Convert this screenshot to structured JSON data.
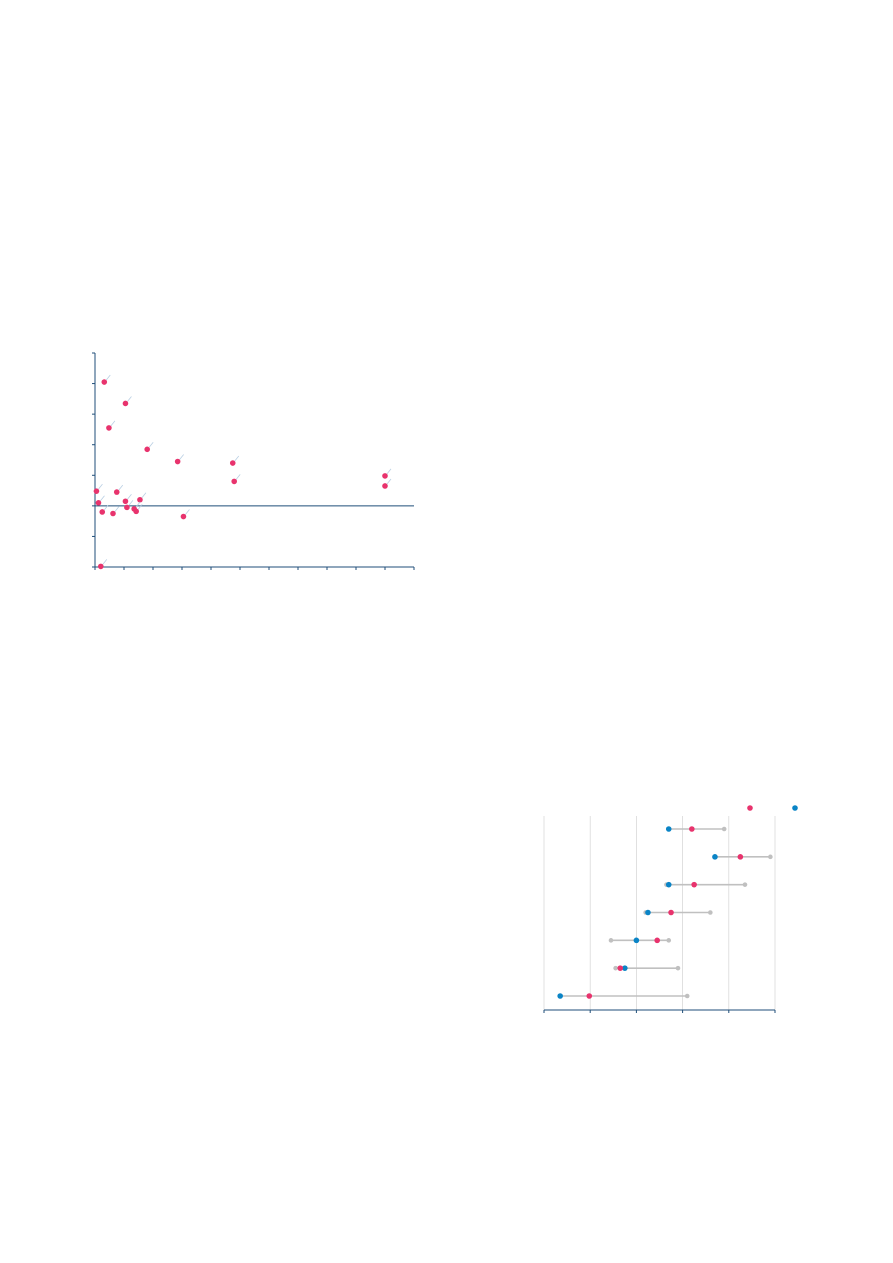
{
  "colors": {
    "axis": "#1f4e79",
    "accent_pink": "#e8336d",
    "accent_blue": "#0a84c6",
    "range_grey": "#c0c0c0",
    "grid": "#d9d9d9",
    "leader": "#b9cfe3"
  },
  "chart_data": [
    {
      "type": "scatter",
      "title": "",
      "xlabel": "",
      "ylabel": "",
      "xlim": [
        0,
        11
      ],
      "ylim": [
        -2,
        5
      ],
      "x_ticks": [
        0,
        1,
        2,
        3,
        4,
        5,
        6,
        7,
        8,
        9,
        10,
        11
      ],
      "y_ticks": [
        -2,
        -1,
        0,
        1,
        2,
        3,
        4,
        5
      ],
      "reference_line_y": 0,
      "grid": false,
      "series": [
        {
          "color": "#e8336d",
          "points": [
            {
              "x": 0.32,
              "y": 4.05
            },
            {
              "x": 1.05,
              "y": 3.35
            },
            {
              "x": 0.48,
              "y": 2.55
            },
            {
              "x": 1.8,
              "y": 1.85
            },
            {
              "x": 2.85,
              "y": 1.45
            },
            {
              "x": 4.75,
              "y": 1.4
            },
            {
              "x": 4.8,
              "y": 0.8
            },
            {
              "x": 10.0,
              "y": 0.98
            },
            {
              "x": 10.0,
              "y": 0.65
            },
            {
              "x": 0.05,
              "y": 0.48
            },
            {
              "x": 0.75,
              "y": 0.45
            },
            {
              "x": 1.55,
              "y": 0.2
            },
            {
              "x": 0.12,
              "y": 0.1
            },
            {
              "x": 1.05,
              "y": 0.15
            },
            {
              "x": 1.1,
              "y": -0.05
            },
            {
              "x": 1.35,
              "y": -0.1
            },
            {
              "x": 1.42,
              "y": -0.18
            },
            {
              "x": 0.25,
              "y": -0.2
            },
            {
              "x": 0.62,
              "y": -0.25
            },
            {
              "x": 3.05,
              "y": -0.35
            },
            {
              "x": 0.2,
              "y": -1.98
            }
          ]
        }
      ]
    },
    {
      "type": "dumbbell",
      "title": "",
      "xlabel": "",
      "ylabel": "",
      "xlim": [
        0,
        5
      ],
      "x_ticks": [
        0,
        1,
        2,
        3,
        4,
        5
      ],
      "grid": true,
      "legend_position": "top-right",
      "legend_swatches": [
        "#e8336d",
        "#0a84c6"
      ],
      "rows": [
        {
          "low": 2.7,
          "high": 3.9,
          "pink": 3.2,
          "blue": 2.7
        },
        {
          "low": 3.7,
          "high": 4.9,
          "pink": 4.25,
          "blue": 3.7
        },
        {
          "low": 2.65,
          "high": 4.35,
          "pink": 3.25,
          "blue": 2.7
        },
        {
          "low": 2.2,
          "high": 3.6,
          "pink": 2.75,
          "blue": 2.25
        },
        {
          "low": 1.45,
          "high": 2.7,
          "pink": 2.45,
          "blue": 2.0
        },
        {
          "low": 1.55,
          "high": 2.9,
          "pink": 1.65,
          "blue": 1.75
        },
        {
          "low": 0.35,
          "high": 3.1,
          "pink": 0.98,
          "blue": 0.35
        }
      ]
    }
  ]
}
